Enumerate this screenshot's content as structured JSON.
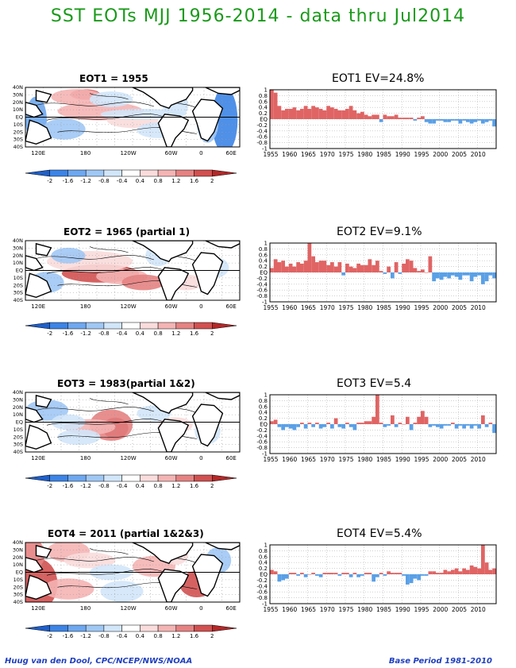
{
  "page": {
    "title": "SST EOTs MJJ 1956-2014 - data thru Jul2014",
    "footer_left": "Huug van den Dool, CPC/NCEP/NWS/NOAA",
    "footer_right": "Base Period 1981-2010"
  },
  "colors": {
    "positive": "#e06464",
    "negative": "#5aa0e6",
    "grid": "#b4b4b4",
    "title": "#1a9a1a",
    "footer": "#1f3fbf"
  },
  "map_axes": {
    "lat_labels": [
      "40N",
      "30N",
      "20N",
      "10N",
      "EQ",
      "10S",
      "20S",
      "30S",
      "40S"
    ],
    "lon_labels": [
      "120E",
      "180",
      "120W",
      "60W",
      "0",
      "60E"
    ]
  },
  "colorbar": {
    "labels": [
      "-2",
      "-1.6",
      "-1.2",
      "-0.8",
      "-0.4",
      "0.4",
      "0.8",
      "1.2",
      "1.6",
      "2"
    ],
    "colors": [
      "#1f5fc8",
      "#3c84e6",
      "#6ea8f0",
      "#a0c8f5",
      "#d2e6fa",
      "#ffffff",
      "#fadcdc",
      "#f5b4b4",
      "#e68282",
      "#d25050",
      "#b42828"
    ]
  },
  "chart_data": [
    {
      "type": "bar",
      "map_title": "EOT1    = 1955",
      "title": "EOT1   EV=24.8%",
      "x_tick_labels": [
        "1955",
        "1960",
        "1965",
        "1970",
        "1975",
        "1980",
        "1985",
        "1990",
        "1995",
        "2000",
        "2005",
        "2010"
      ],
      "y_tick_labels": [
        "1",
        "0.8",
        "0.6",
        "0.4",
        "0.2",
        "EQ",
        "-0.2",
        "-0.4",
        "-0.6",
        "-0.8",
        "-1"
      ],
      "ylim": [
        -1,
        1
      ],
      "x": [
        1955,
        1956,
        1957,
        1958,
        1959,
        1960,
        1961,
        1962,
        1963,
        1964,
        1965,
        1966,
        1967,
        1968,
        1969,
        1970,
        1971,
        1972,
        1973,
        1974,
        1975,
        1976,
        1977,
        1978,
        1979,
        1980,
        1981,
        1982,
        1983,
        1984,
        1985,
        1986,
        1987,
        1988,
        1989,
        1990,
        1991,
        1992,
        1993,
        1994,
        1995,
        1996,
        1997,
        1998,
        1999,
        2000,
        2001,
        2002,
        2003,
        2004,
        2005,
        2006,
        2007,
        2008,
        2009,
        2010,
        2011,
        2012,
        2013,
        2014
      ],
      "values": [
        1.0,
        0.9,
        0.45,
        0.3,
        0.35,
        0.35,
        0.4,
        0.3,
        0.35,
        0.45,
        0.35,
        0.45,
        0.4,
        0.35,
        0.3,
        0.45,
        0.4,
        0.35,
        0.3,
        0.3,
        0.35,
        0.45,
        0.3,
        0.2,
        0.25,
        0.15,
        0.1,
        0.15,
        0.15,
        -0.1,
        0.15,
        0.1,
        0.1,
        0.15,
        0.05,
        0.05,
        0.05,
        0.05,
        -0.05,
        0.05,
        0.1,
        -0.1,
        -0.15,
        -0.15,
        -0.05,
        -0.05,
        -0.1,
        -0.1,
        -0.05,
        -0.05,
        -0.15,
        -0.05,
        -0.1,
        -0.15,
        -0.1,
        -0.05,
        -0.15,
        -0.1,
        -0.05,
        -0.25
      ]
    },
    {
      "type": "bar",
      "map_title": "EOT2    = 1965 (partial 1)",
      "title": "EOT2   EV=9.1%",
      "x_tick_labels": [
        "1955",
        "1960",
        "1965",
        "1970",
        "1975",
        "1980",
        "1985",
        "1990",
        "1995",
        "2000",
        "2005",
        "2010"
      ],
      "y_tick_labels": [
        "1",
        "0.8",
        "0.6",
        "0.4",
        "0.2",
        "EQ",
        "-0.2",
        "-0.4",
        "-0.6",
        "-0.8",
        "-1"
      ],
      "ylim": [
        -1,
        1
      ],
      "x": [
        1955,
        1956,
        1957,
        1958,
        1959,
        1960,
        1961,
        1962,
        1963,
        1964,
        1965,
        1966,
        1967,
        1968,
        1969,
        1970,
        1971,
        1972,
        1973,
        1974,
        1975,
        1976,
        1977,
        1978,
        1979,
        1980,
        1981,
        1982,
        1983,
        1984,
        1985,
        1986,
        1987,
        1988,
        1989,
        1990,
        1991,
        1992,
        1993,
        1994,
        1995,
        1996,
        1997,
        1998,
        1999,
        2000,
        2001,
        2002,
        2003,
        2004,
        2005,
        2006,
        2007,
        2008,
        2009,
        2010,
        2011,
        2012,
        2013,
        2014
      ],
      "values": [
        0.15,
        0.45,
        0.35,
        0.4,
        0.2,
        0.3,
        0.2,
        0.35,
        0.3,
        0.4,
        1.0,
        0.55,
        0.35,
        0.4,
        0.4,
        0.25,
        0.35,
        0.2,
        0.35,
        -0.1,
        0.3,
        0.2,
        0.15,
        0.3,
        0.25,
        0.25,
        0.45,
        0.25,
        0.4,
        0.05,
        -0.05,
        0.2,
        -0.2,
        0.35,
        -0.05,
        0.3,
        0.45,
        0.4,
        0.15,
        0.05,
        0.1,
        0.0,
        0.55,
        -0.3,
        -0.2,
        -0.25,
        -0.15,
        -0.2,
        -0.1,
        -0.15,
        -0.25,
        -0.1,
        -0.1,
        -0.3,
        -0.15,
        -0.1,
        -0.4,
        -0.3,
        -0.1,
        -0.2
      ]
    },
    {
      "type": "bar",
      "map_title": "EOT3    = 1983(partial 1&2)",
      "title": "EOT3   EV=5.4",
      "x_tick_labels": [
        "1955",
        "1960",
        "1965",
        "1970",
        "1975",
        "1980",
        "1985",
        "1990",
        "1995",
        "2000",
        "2005",
        "2010"
      ],
      "y_tick_labels": [
        "1",
        "0.8",
        "0.6",
        "0.4",
        "0.2",
        "EQ",
        "-0.2",
        "-0.4",
        "-0.6",
        "-0.8",
        "-1"
      ],
      "ylim": [
        -1,
        1
      ],
      "x": [
        1955,
        1956,
        1957,
        1958,
        1959,
        1960,
        1961,
        1962,
        1963,
        1964,
        1965,
        1966,
        1967,
        1968,
        1969,
        1970,
        1971,
        1972,
        1973,
        1974,
        1975,
        1976,
        1977,
        1978,
        1979,
        1980,
        1981,
        1982,
        1983,
        1984,
        1985,
        1986,
        1987,
        1988,
        1989,
        1990,
        1991,
        1992,
        1993,
        1994,
        1995,
        1996,
        1997,
        1998,
        1999,
        2000,
        2001,
        2002,
        2003,
        2004,
        2005,
        2006,
        2007,
        2008,
        2009,
        2010,
        2011,
        2012,
        2013,
        2014
      ],
      "values": [
        0.1,
        0.15,
        -0.1,
        -0.2,
        -0.1,
        -0.15,
        -0.2,
        -0.1,
        0.05,
        -0.15,
        0.05,
        -0.1,
        0.05,
        -0.15,
        -0.1,
        0.05,
        -0.15,
        0.2,
        -0.1,
        -0.15,
        0.05,
        -0.1,
        -0.2,
        0.05,
        0.05,
        0.1,
        0.1,
        0.25,
        1.0,
        0.05,
        -0.1,
        -0.05,
        0.3,
        -0.1,
        0.05,
        0.0,
        0.25,
        -0.2,
        0.05,
        0.25,
        0.45,
        0.25,
        -0.1,
        -0.05,
        -0.1,
        -0.15,
        -0.05,
        -0.05,
        0.05,
        -0.15,
        -0.05,
        -0.15,
        -0.05,
        -0.15,
        -0.05,
        -0.15,
        0.3,
        -0.1,
        0.05,
        -0.3
      ]
    },
    {
      "type": "bar",
      "map_title": "EOT4    = 2011 (partial 1&2&3)",
      "title": "EOT4   EV=5.4%",
      "x_tick_labels": [
        "1955",
        "1960",
        "1965",
        "1970",
        "1975",
        "1980",
        "1985",
        "1990",
        "1995",
        "2000",
        "2005",
        "2010"
      ],
      "y_tick_labels": [
        "1",
        "0.8",
        "0.6",
        "0.4",
        "0.2",
        "EQ",
        "-0.2",
        "-0.4",
        "-0.6",
        "-0.8",
        "-1"
      ],
      "ylim": [
        -1,
        1
      ],
      "x": [
        1955,
        1956,
        1957,
        1958,
        1959,
        1960,
        1961,
        1962,
        1963,
        1964,
        1965,
        1966,
        1967,
        1968,
        1969,
        1970,
        1971,
        1972,
        1973,
        1974,
        1975,
        1976,
        1977,
        1978,
        1979,
        1980,
        1981,
        1982,
        1983,
        1984,
        1985,
        1986,
        1987,
        1988,
        1989,
        1990,
        1991,
        1992,
        1993,
        1994,
        1995,
        1996,
        1997,
        1998,
        1999,
        2000,
        2001,
        2002,
        2003,
        2004,
        2005,
        2006,
        2007,
        2008,
        2009,
        2010,
        2011,
        2012,
        2013,
        2014
      ],
      "values": [
        0.15,
        0.1,
        -0.25,
        -0.2,
        -0.15,
        0.05,
        0.05,
        -0.05,
        0.05,
        -0.1,
        0.0,
        0.05,
        -0.05,
        -0.1,
        0.05,
        0.05,
        0.05,
        0.05,
        -0.05,
        0.05,
        0.05,
        -0.1,
        0.05,
        -0.1,
        -0.05,
        0.05,
        0.05,
        -0.25,
        -0.1,
        0.05,
        -0.05,
        0.1,
        0.05,
        0.05,
        0.05,
        -0.05,
        -0.35,
        -0.3,
        -0.15,
        -0.2,
        -0.05,
        -0.05,
        0.1,
        0.1,
        0.05,
        0.05,
        0.15,
        0.1,
        0.15,
        0.2,
        0.1,
        0.2,
        0.15,
        0.3,
        0.25,
        0.2,
        1.0,
        0.4,
        0.15,
        0.2
      ]
    }
  ]
}
